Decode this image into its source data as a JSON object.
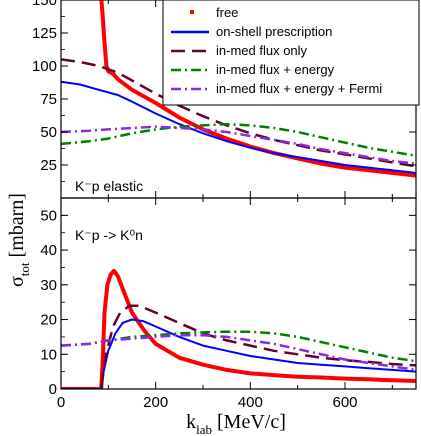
{
  "figure": {
    "ylabel_main": "σ",
    "ylabel_sub": "tot",
    "ylabel_unit": " [mbarn]",
    "xlabel_main": "k",
    "xlabel_sub": "lab",
    "xlabel_unit": " [MeV/c]"
  },
  "legend": {
    "items": [
      {
        "label": "free",
        "color": "#ff0000",
        "style": "dotted-square"
      },
      {
        "label": "on-shell prescription",
        "color": "#0000ff",
        "style": "solid"
      },
      {
        "label": "in-med flux only",
        "color": "#660033",
        "style": "dashed"
      },
      {
        "label": "in-med flux + energy",
        "color": "#008000",
        "style": "dash-dot"
      },
      {
        "label": "in-med flux + energy + Fermi",
        "color": "#8a2be2",
        "style": "dash-dot"
      }
    ]
  },
  "chart_data": [
    {
      "type": "line",
      "panel_label": "K⁻p elastic",
      "xlim": [
        0,
        750
      ],
      "ylim": [
        0,
        150
      ],
      "yticks": [
        25,
        50,
        75,
        100,
        125,
        150
      ],
      "series": [
        {
          "name": "free",
          "color": "#ff0000",
          "width": 4,
          "dash": "",
          "points": [
            [
              85,
              152
            ],
            [
              88,
              138
            ],
            [
              92,
              118
            ],
            [
              96,
              100
            ],
            [
              100,
              96
            ],
            [
              110,
              94
            ],
            [
              120,
              90
            ],
            [
              150,
              82
            ],
            [
              200,
              72
            ],
            [
              250,
              61
            ],
            [
              300,
              52
            ],
            [
              350,
              45
            ],
            [
              400,
              39
            ],
            [
              450,
              34
            ],
            [
              500,
              30
            ],
            [
              550,
              26
            ],
            [
              600,
              23
            ],
            [
              650,
              21
            ],
            [
              700,
              19
            ],
            [
              750,
              17
            ]
          ]
        },
        {
          "name": "on-shell prescription",
          "color": "#0000ff",
          "width": 2,
          "dash": "",
          "points": [
            [
              0,
              88
            ],
            [
              40,
              86
            ],
            [
              80,
              82
            ],
            [
              120,
              78
            ],
            [
              150,
              73
            ],
            [
              200,
              64
            ],
            [
              250,
              56
            ],
            [
              300,
              49
            ],
            [
              350,
              43
            ],
            [
              400,
              38
            ],
            [
              450,
              34
            ],
            [
              500,
              31
            ],
            [
              550,
              28
            ],
            [
              600,
              25
            ],
            [
              650,
              23
            ],
            [
              700,
              21
            ],
            [
              750,
              19
            ]
          ]
        },
        {
          "name": "in-med flux only",
          "color": "#660033",
          "width": 2.5,
          "dash": "14,7",
          "points": [
            [
              0,
              105
            ],
            [
              40,
              103
            ],
            [
              80,
              100
            ],
            [
              120,
              95
            ],
            [
              150,
              89
            ],
            [
              200,
              79
            ],
            [
              250,
              70
            ],
            [
              300,
              62
            ],
            [
              350,
              55
            ],
            [
              400,
              49
            ],
            [
              450,
              44
            ],
            [
              500,
              40
            ],
            [
              550,
              36
            ],
            [
              600,
              33
            ],
            [
              650,
              30
            ],
            [
              700,
              27
            ],
            [
              750,
              24
            ]
          ]
        },
        {
          "name": "in-med flux + energy",
          "color": "#008000",
          "width": 2.5,
          "dash": "10,4,2,4",
          "points": [
            [
              0,
              41
            ],
            [
              60,
              43
            ],
            [
              100,
              45
            ],
            [
              150,
              49
            ],
            [
              200,
              52
            ],
            [
              250,
              54
            ],
            [
              300,
              55
            ],
            [
              350,
              56
            ],
            [
              400,
              55
            ],
            [
              450,
              53
            ],
            [
              500,
              50
            ],
            [
              550,
              46
            ],
            [
              600,
              42
            ],
            [
              650,
              38
            ],
            [
              700,
              35
            ],
            [
              750,
              32
            ]
          ]
        },
        {
          "name": "in-med flux + energy + Fermi",
          "color": "#8a2be2",
          "width": 2.5,
          "dash": "10,4,2,4",
          "points": [
            [
              0,
              50
            ],
            [
              60,
              51
            ],
            [
              100,
              52
            ],
            [
              150,
              53
            ],
            [
              200,
              54
            ],
            [
              250,
              53
            ],
            [
              300,
              52
            ],
            [
              350,
              50
            ],
            [
              400,
              47
            ],
            [
              450,
              44
            ],
            [
              500,
              41
            ],
            [
              550,
              37
            ],
            [
              600,
              34
            ],
            [
              650,
              31
            ],
            [
              700,
              28
            ],
            [
              750,
              26
            ]
          ]
        }
      ]
    },
    {
      "type": "line",
      "panel_label": "K⁻p -> K⁰n",
      "xlim": [
        0,
        750
      ],
      "ylim": [
        0,
        55
      ],
      "yticks": [
        0,
        10,
        20,
        30,
        40,
        50
      ],
      "series": [
        {
          "name": "free",
          "color": "#ff0000",
          "width": 4,
          "dash": "",
          "points": [
            [
              0,
              0
            ],
            [
              85,
              0
            ],
            [
              88,
              8
            ],
            [
              92,
              22
            ],
            [
              98,
              30
            ],
            [
              105,
              33
            ],
            [
              112,
              34
            ],
            [
              120,
              32.5
            ],
            [
              130,
              29
            ],
            [
              150,
              22
            ],
            [
              175,
              17
            ],
            [
              200,
              13
            ],
            [
              250,
              9
            ],
            [
              300,
              7
            ],
            [
              350,
              5.5
            ],
            [
              400,
              4.5
            ],
            [
              450,
              4
            ],
            [
              500,
              3.5
            ],
            [
              550,
              3.3
            ],
            [
              600,
              3
            ],
            [
              650,
              2.8
            ],
            [
              700,
              2.5
            ],
            [
              750,
              2.3
            ]
          ]
        },
        {
          "name": "on-shell prescription",
          "color": "#0000ff",
          "width": 2,
          "dash": "",
          "points": [
            [
              0,
              0
            ],
            [
              85,
              0
            ],
            [
              90,
              5
            ],
            [
              100,
              11
            ],
            [
              115,
              16
            ],
            [
              130,
              19
            ],
            [
              150,
              20
            ],
            [
              175,
              19.5
            ],
            [
              200,
              18
            ],
            [
              250,
              15
            ],
            [
              300,
              12.5
            ],
            [
              350,
              11
            ],
            [
              400,
              9.5
            ],
            [
              450,
              8.5
            ],
            [
              500,
              7.5
            ],
            [
              550,
              7
            ],
            [
              600,
              6.5
            ],
            [
              650,
              6
            ],
            [
              700,
              5.5
            ],
            [
              750,
              5
            ]
          ]
        },
        {
          "name": "in-med flux only",
          "color": "#660033",
          "width": 2.5,
          "dash": "14,7",
          "points": [
            [
              0,
              0
            ],
            [
              85,
              0
            ],
            [
              95,
              10
            ],
            [
              110,
              18
            ],
            [
              125,
              22
            ],
            [
              145,
              24
            ],
            [
              165,
              24
            ],
            [
              200,
              22
            ],
            [
              250,
              19
            ],
            [
              300,
              16
            ],
            [
              350,
              14
            ],
            [
              400,
              12.5
            ],
            [
              450,
              11
            ],
            [
              500,
              10
            ],
            [
              550,
              9
            ],
            [
              600,
              8.3
            ],
            [
              650,
              7.8
            ],
            [
              700,
              7.2
            ],
            [
              750,
              6.8
            ]
          ]
        },
        {
          "name": "in-med flux + energy",
          "color": "#008000",
          "width": 2.5,
          "dash": "10,4,2,4",
          "points": [
            [
              0,
              12.5
            ],
            [
              60,
              13
            ],
            [
              100,
              14
            ],
            [
              150,
              15
            ],
            [
              200,
              15.5
            ],
            [
              250,
              16
            ],
            [
              300,
              16.3
            ],
            [
              350,
              16.5
            ],
            [
              400,
              16.5
            ],
            [
              450,
              16
            ],
            [
              500,
              15
            ],
            [
              550,
              13.5
            ],
            [
              600,
              12
            ],
            [
              650,
              10.5
            ],
            [
              700,
              9
            ],
            [
              750,
              8
            ]
          ]
        },
        {
          "name": "in-med flux + energy + Fermi",
          "color": "#8a2be2",
          "width": 2.5,
          "dash": "10,4,2,4",
          "points": [
            [
              0,
              12.5
            ],
            [
              60,
              13
            ],
            [
              100,
              14
            ],
            [
              150,
              14.5
            ],
            [
              200,
              15
            ],
            [
              250,
              15.5
            ],
            [
              300,
              15.5
            ],
            [
              350,
              15
            ],
            [
              400,
              14
            ],
            [
              450,
              13
            ],
            [
              500,
              11.5
            ],
            [
              550,
              10
            ],
            [
              600,
              8.5
            ],
            [
              650,
              7.5
            ],
            [
              700,
              6.5
            ],
            [
              750,
              5.5
            ]
          ]
        }
      ]
    }
  ],
  "xticks": [
    0,
    200,
    400,
    600
  ]
}
